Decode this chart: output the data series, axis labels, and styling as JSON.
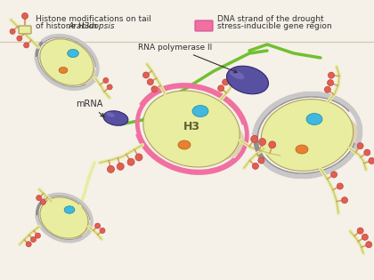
{
  "bg_color": "#f5f0e8",
  "legend": {
    "histone_mod_text1": "Histone modifications on tail",
    "histone_mod_text2": "of histone H3in ",
    "histone_mod_italics": "Arabidopsis",
    "dna_strand_text1": "DNA strand of the drought",
    "dna_strand_text2": "stress-inducible gene region"
  },
  "colors": {
    "nucleosome_body": "#e8eda0",
    "nucleosome_shadow": "#c8b87a",
    "pink_band": "#f070a0",
    "gray_band": "#909090",
    "gray_band_light": "#c8c8c8",
    "cyan_blob": "#40b8e0",
    "orange_blob": "#e88030",
    "purple_ellipse": "#5850a0",
    "green_curve": "#70c030",
    "dna_tail": "#e8eda0",
    "modification_stem": "#d4a060",
    "modification_ball": "#e06050",
    "h3_text": "#606030",
    "legend_box_pink": "#f070a0",
    "legend_icon_body": "#e8eda0",
    "legend_icon_stem": "#d4a060",
    "legend_icon_ball": "#e06050"
  }
}
